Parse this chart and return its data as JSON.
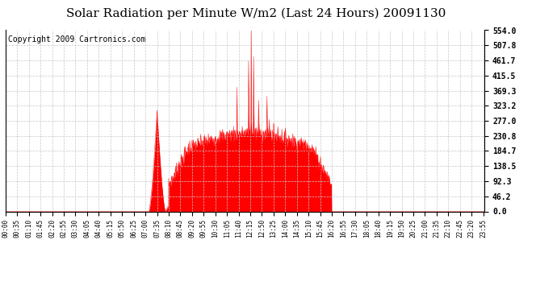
{
  "title": "Solar Radiation per Minute W/m2 (Last 24 Hours) 20091130",
  "copyright_text": "Copyright 2009 Cartronics.com",
  "y_tick_labels": [
    "0.0",
    "46.2",
    "92.3",
    "138.5",
    "184.7",
    "230.8",
    "277.0",
    "323.2",
    "369.3",
    "415.5",
    "461.7",
    "507.8",
    "554.0"
  ],
  "y_tick_values": [
    0.0,
    46.2,
    92.3,
    138.5,
    184.7,
    230.8,
    277.0,
    323.2,
    369.3,
    415.5,
    461.7,
    507.8,
    554.0
  ],
  "ymax": 554.0,
  "fill_color": "#ff0000",
  "line_color": "#ff0000",
  "bg_color": "#ffffff",
  "grid_color": "#c8c8c8",
  "dashed_line_color": "#ff0000",
  "title_fontsize": 11,
  "copyright_fontsize": 7
}
